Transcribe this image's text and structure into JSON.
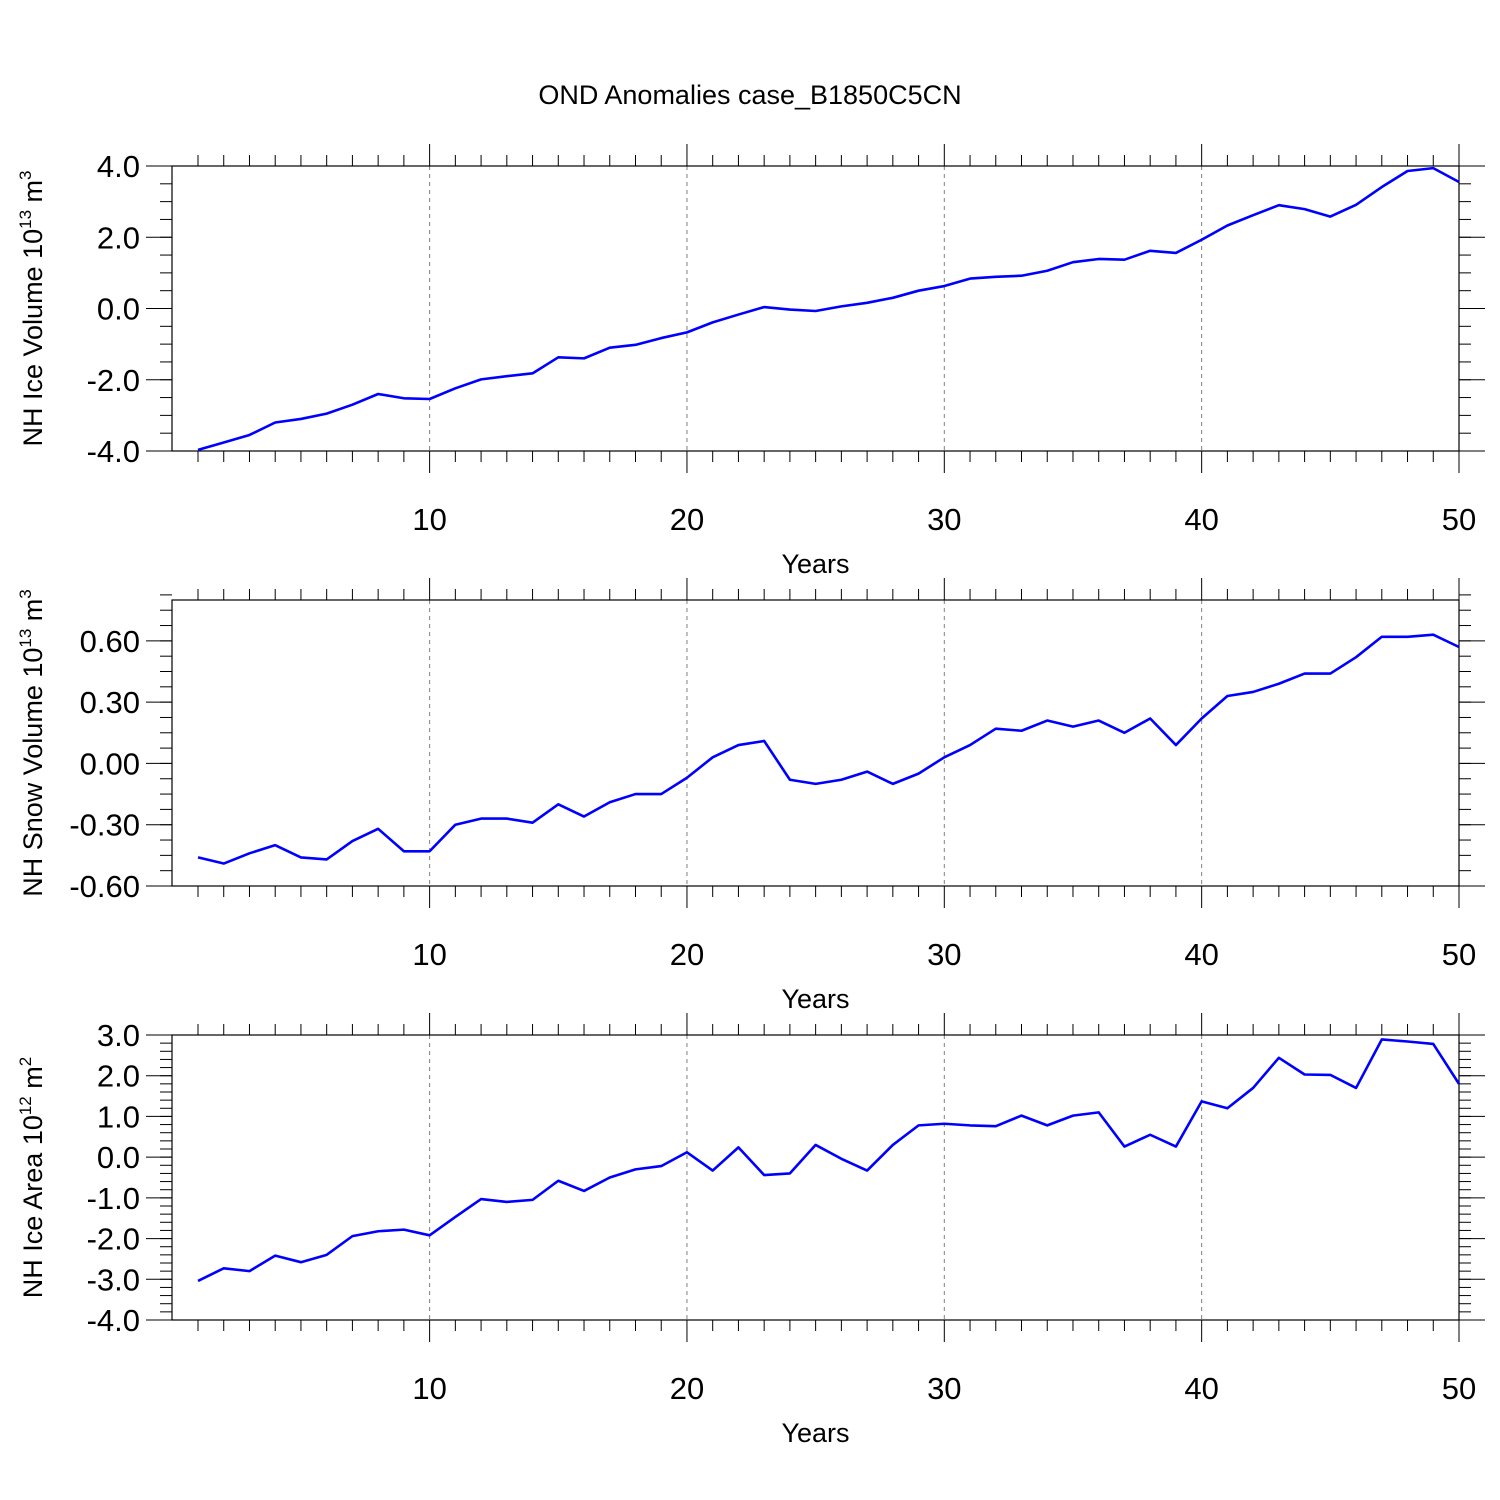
{
  "figure": {
    "title": "OND Anomalies case_B1850C5CN",
    "line_color": "#0000ff",
    "frame_color": "#000000",
    "grid_color": "#808080"
  },
  "chart_data": [
    {
      "type": "line",
      "xlabel": "Years",
      "ylabel": {
        "text": "NH Ice Volume 10",
        "exponent": "13",
        "unit": " m",
        "unit_exponent": "3"
      },
      "xlim": [
        1,
        50
      ],
      "ylim": [
        -4.0,
        4.0
      ],
      "x_ticks": [
        10,
        20,
        30,
        40,
        50
      ],
      "y_ticks": [
        -4.0,
        -2.0,
        0.0,
        2.0,
        4.0
      ],
      "y_tick_labels": [
        "-4.0",
        "-2.0",
        "0.0",
        "2.0",
        "4.0"
      ],
      "y_minor_step": 0.5,
      "grid": "vertical dashed at x ticks",
      "x": [
        1,
        2,
        3,
        4,
        5,
        6,
        7,
        8,
        9,
        10,
        11,
        12,
        13,
        14,
        15,
        16,
        17,
        18,
        19,
        20,
        21,
        22,
        23,
        24,
        25,
        26,
        27,
        28,
        29,
        30,
        31,
        32,
        33,
        34,
        35,
        36,
        37,
        38,
        39,
        40,
        41,
        42,
        43,
        44,
        45,
        46,
        47,
        48,
        49,
        50
      ],
      "series": [
        {
          "values": [
            -3.97,
            -3.76,
            -3.55,
            -3.2,
            -3.1,
            -2.95,
            -2.7,
            -2.4,
            -2.52,
            -2.54,
            -2.24,
            -1.99,
            -1.9,
            -1.82,
            -1.37,
            -1.4,
            -1.1,
            -1.02,
            -0.83,
            -0.67,
            -0.39,
            -0.17,
            0.04,
            -0.03,
            -0.07,
            0.06,
            0.16,
            0.3,
            0.5,
            0.63,
            0.84,
            0.89,
            0.92,
            1.06,
            1.3,
            1.39,
            1.37,
            1.62,
            1.56,
            1.93,
            2.33,
            2.62,
            2.9,
            2.79,
            2.58,
            2.91,
            3.41,
            3.86,
            3.94,
            3.55
          ]
        }
      ]
    },
    {
      "type": "line",
      "xlabel": "Years",
      "ylabel": {
        "text": "NH Snow Volume 10",
        "exponent": "13",
        "unit": " m",
        "unit_exponent": "3"
      },
      "xlim": [
        1,
        50
      ],
      "ylim": [
        -0.6,
        0.8
      ],
      "x_ticks": [
        10,
        20,
        30,
        40,
        50
      ],
      "y_ticks": [
        -0.6,
        -0.3,
        0.0,
        0.3,
        0.6
      ],
      "y_tick_labels": [
        "-0.60",
        "-0.30",
        "0.00",
        "0.30",
        "0.60"
      ],
      "y_minor_step": 0.075,
      "grid": "vertical dashed at x ticks",
      "x": [
        1,
        2,
        3,
        4,
        5,
        6,
        7,
        8,
        9,
        10,
        11,
        12,
        13,
        14,
        15,
        16,
        17,
        18,
        19,
        20,
        21,
        22,
        23,
        24,
        25,
        26,
        27,
        28,
        29,
        30,
        31,
        32,
        33,
        34,
        35,
        36,
        37,
        38,
        39,
        40,
        41,
        42,
        43,
        44,
        45,
        46,
        47,
        48,
        49,
        50
      ],
      "series": [
        {
          "values": [
            -0.46,
            -0.49,
            -0.44,
            -0.4,
            -0.46,
            -0.47,
            -0.38,
            -0.32,
            -0.43,
            -0.43,
            -0.3,
            -0.27,
            -0.27,
            -0.29,
            -0.2,
            -0.26,
            -0.19,
            -0.15,
            -0.15,
            -0.07,
            0.03,
            0.09,
            0.11,
            -0.08,
            -0.1,
            -0.08,
            -0.04,
            -0.1,
            -0.05,
            0.03,
            0.09,
            0.17,
            0.16,
            0.21,
            0.18,
            0.21,
            0.15,
            0.22,
            0.09,
            0.22,
            0.33,
            0.35,
            0.39,
            0.44,
            0.44,
            0.52,
            0.62,
            0.62,
            0.63,
            0.57
          ]
        }
      ]
    },
    {
      "type": "line",
      "xlabel": "Years",
      "ylabel": {
        "text": "NH Ice Area 10",
        "exponent": "12",
        "unit": " m",
        "unit_exponent": "2"
      },
      "xlim": [
        1,
        50
      ],
      "ylim": [
        -4.0,
        3.0
      ],
      "x_ticks": [
        10,
        20,
        30,
        40,
        50
      ],
      "y_ticks": [
        -4.0,
        -3.0,
        -2.0,
        -1.0,
        0.0,
        1.0,
        2.0,
        3.0
      ],
      "y_tick_labels": [
        "-4.0",
        "-3.0",
        "-2.0",
        "-1.0",
        "0.0",
        "1.0",
        "2.0",
        "3.0"
      ],
      "y_minor_step": 0.2,
      "grid": "vertical dashed at x ticks",
      "x": [
        1,
        2,
        3,
        4,
        5,
        6,
        7,
        8,
        9,
        10,
        11,
        12,
        13,
        14,
        15,
        16,
        17,
        18,
        19,
        20,
        21,
        22,
        23,
        24,
        25,
        26,
        27,
        28,
        29,
        30,
        31,
        32,
        33,
        34,
        35,
        36,
        37,
        38,
        39,
        40,
        41,
        42,
        43,
        44,
        45,
        46,
        47,
        48,
        49,
        50
      ],
      "series": [
        {
          "values": [
            -3.04,
            -2.73,
            -2.8,
            -2.42,
            -2.58,
            -2.4,
            -1.94,
            -1.82,
            -1.78,
            -1.92,
            -1.47,
            -1.03,
            -1.1,
            -1.05,
            -0.58,
            -0.83,
            -0.5,
            -0.3,
            -0.22,
            0.12,
            -0.33,
            0.24,
            -0.44,
            -0.4,
            0.3,
            -0.04,
            -0.33,
            0.3,
            0.78,
            0.82,
            0.78,
            0.76,
            1.02,
            0.78,
            1.02,
            1.1,
            0.26,
            0.55,
            0.26,
            1.37,
            1.2,
            1.7,
            2.44,
            2.03,
            2.02,
            1.7,
            2.89,
            2.84,
            2.78,
            1.8
          ]
        }
      ]
    }
  ]
}
